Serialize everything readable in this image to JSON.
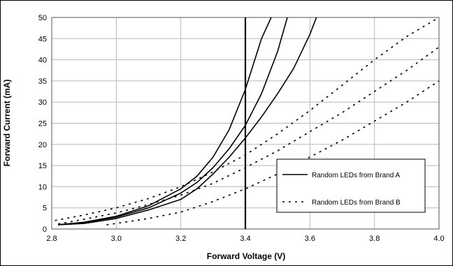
{
  "chart_data": {
    "type": "line",
    "title": "",
    "xlabel": "Forward Voltage (V)",
    "ylabel": "Forward Current (mA)",
    "xlim": [
      2.8,
      4.0
    ],
    "ylim": [
      0,
      50
    ],
    "x_ticks": [
      "2.8",
      "3.0",
      "3.2",
      "3.4",
      "3.6",
      "3.8",
      "4.0"
    ],
    "y_ticks": [
      "0",
      "5",
      "10",
      "15",
      "20",
      "25",
      "30",
      "35",
      "40",
      "45",
      "50"
    ],
    "grid": true,
    "legend_position": "lower-right",
    "reference_line": {
      "x": 3.4
    },
    "legend": [
      {
        "label": "Random LEDs from Brand A",
        "style": "solid"
      },
      {
        "label": "Random LEDs from Brand B",
        "style": "dotted"
      }
    ],
    "series": [
      {
        "group": "Brand A",
        "style": "solid",
        "points": [
          [
            2.82,
            1
          ],
          [
            2.9,
            1.6
          ],
          [
            3.0,
            3
          ],
          [
            3.1,
            5.5
          ],
          [
            3.2,
            9.5
          ],
          [
            3.25,
            12.5
          ],
          [
            3.3,
            17
          ],
          [
            3.35,
            23.5
          ],
          [
            3.4,
            33
          ],
          [
            3.45,
            45
          ],
          [
            3.48,
            50
          ]
        ]
      },
      {
        "group": "Brand A",
        "style": "solid",
        "points": [
          [
            2.82,
            1
          ],
          [
            2.9,
            1.5
          ],
          [
            3.0,
            2.8
          ],
          [
            3.1,
            5
          ],
          [
            3.2,
            8.5
          ],
          [
            3.25,
            11
          ],
          [
            3.3,
            14.5
          ],
          [
            3.35,
            19
          ],
          [
            3.4,
            24.5
          ],
          [
            3.45,
            32
          ],
          [
            3.5,
            42
          ],
          [
            3.53,
            50
          ]
        ]
      },
      {
        "group": "Brand A",
        "style": "solid",
        "points": [
          [
            2.82,
            1
          ],
          [
            2.9,
            1.3
          ],
          [
            3.0,
            2.5
          ],
          [
            3.1,
            4.5
          ],
          [
            3.2,
            7
          ],
          [
            3.25,
            9.5
          ],
          [
            3.3,
            13
          ],
          [
            3.35,
            17
          ],
          [
            3.4,
            21.5
          ],
          [
            3.45,
            26.5
          ],
          [
            3.5,
            32
          ],
          [
            3.55,
            38
          ],
          [
            3.6,
            46
          ],
          [
            3.62,
            50
          ]
        ]
      },
      {
        "group": "Brand B",
        "style": "dotted",
        "points": [
          [
            2.81,
            2
          ],
          [
            2.9,
            3.3
          ],
          [
            3.0,
            5
          ],
          [
            3.1,
            7.2
          ],
          [
            3.2,
            10
          ],
          [
            3.3,
            13.5
          ],
          [
            3.4,
            17.5
          ],
          [
            3.5,
            22.5
          ],
          [
            3.6,
            28
          ],
          [
            3.7,
            34
          ],
          [
            3.8,
            40
          ],
          [
            3.9,
            45.5
          ],
          [
            4.0,
            50
          ]
        ]
      },
      {
        "group": "Brand B",
        "style": "dotted",
        "points": [
          [
            2.82,
            1.2
          ],
          [
            2.9,
            2.3
          ],
          [
            3.0,
            3.8
          ],
          [
            3.1,
            5.8
          ],
          [
            3.2,
            8
          ],
          [
            3.3,
            10.8
          ],
          [
            3.4,
            14.5
          ],
          [
            3.5,
            18.5
          ],
          [
            3.6,
            23
          ],
          [
            3.7,
            27.5
          ],
          [
            3.8,
            32.5
          ],
          [
            3.9,
            37.5
          ],
          [
            4.0,
            43
          ]
        ]
      },
      {
        "group": "Brand B",
        "style": "dotted",
        "points": [
          [
            2.97,
            1
          ],
          [
            3.0,
            1.3
          ],
          [
            3.1,
            2.5
          ],
          [
            3.2,
            4
          ],
          [
            3.3,
            6.5
          ],
          [
            3.4,
            9.5
          ],
          [
            3.5,
            13
          ],
          [
            3.6,
            17
          ],
          [
            3.7,
            21
          ],
          [
            3.8,
            25.5
          ],
          [
            3.9,
            30
          ],
          [
            4.0,
            35
          ]
        ]
      }
    ]
  }
}
